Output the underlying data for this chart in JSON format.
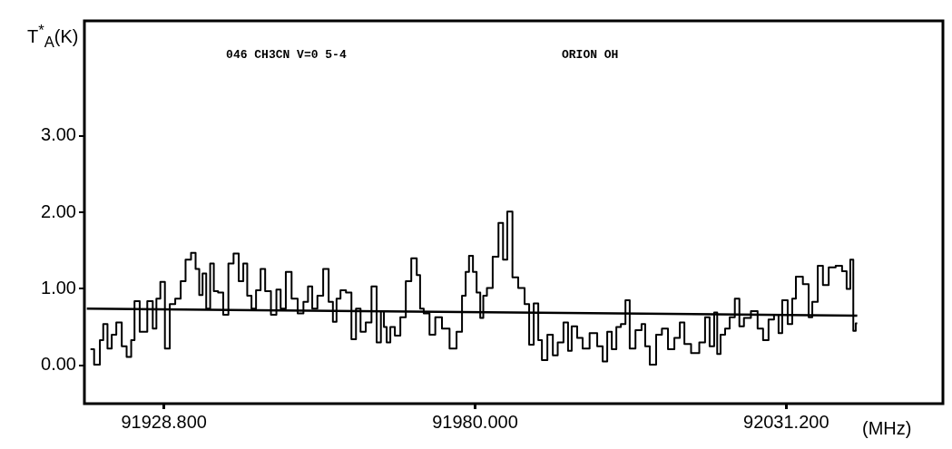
{
  "chart_data": {
    "type": "step",
    "xlabel": "(MHz)",
    "ylabel": "T$^{*}$$_{A}$(K)",
    "annotations": [
      "046 CH3CN V=0 5-4",
      "ORION OH"
    ],
    "xlim": [
      91915.7,
      92057.0
    ],
    "ylim": [
      -0.5,
      4.5
    ],
    "xticks": [
      {
        "value": 91928.8,
        "label": "91928.800"
      },
      {
        "value": 91980.0,
        "label": "91980.000"
      },
      {
        "value": 92031.2,
        "label": "92031.200"
      }
    ],
    "yticks": [
      {
        "value": 0,
        "label": "0.00"
      },
      {
        "value": 1,
        "label": "1.00"
      },
      {
        "value": 2,
        "label": "2.00"
      },
      {
        "value": 3,
        "label": "3.00"
      }
    ],
    "legend": false,
    "series": [
      {
        "color": "#000000",
        "x": [
          91916.7,
          91917.9,
          91918.6,
          91919.0,
          91920.0,
          91920.4,
          91921.5,
          91922.2,
          91923.1,
          91923.7,
          91924.2,
          91925.4,
          91926.7,
          91927.2,
          91927.9,
          91928.5,
          91929.4,
          91930.1,
          91931.2,
          91931.9,
          91932.8,
          91933.7,
          91934.3,
          91934.9,
          91935.4,
          91936.1,
          91936.7,
          91937.3,
          91938.1,
          91939.0,
          91939.8,
          91940.7,
          91941.5,
          91942.2,
          91942.8,
          91943.6,
          91944.3,
          91945.1,
          91945.8,
          91947.0,
          91947.6,
          91948.4,
          91949.3,
          91950.3,
          91951.3,
          91952.2,
          91952.8,
          91953.6,
          91954.5,
          91955.5,
          91956.3,
          91956.9,
          91957.5,
          91958.2,
          91959.3,
          91960.0,
          91960.8,
          91961.5,
          91962.5,
          91963.4,
          91964.2,
          91964.8,
          91965.2,
          91965.7,
          91966.4,
          91967.2,
          91968.2,
          91969.0,
          91970.0,
          91970.8,
          91971.1,
          91972.0,
          91973.0,
          91973.9,
          91975.2,
          91976.4,
          91977.5,
          91978.2,
          91978.7,
          91979.3,
          91980.0,
          91980.5,
          91981.2,
          91981.5,
          91982.4,
          91983.4,
          91984.3,
          91984.9,
          91985.7,
          91986.6,
          91987.6,
          91988.7,
          91989.1,
          91990.2,
          91990.6,
          91991.4,
          91992.4,
          91993.2,
          91994.0,
          91995.1,
          91995.5,
          91996.3,
          91997.3,
          91998.1,
          91999.6,
          92000.6,
          92001.4,
          92002.1,
          92002.9,
          92003.6,
          92004.4,
          92005.1,
          92005.8,
          92007.0,
          92007.8,
          92008.2,
          92009.3,
          92010.3,
          92011.2,
          92012.3,
          92013.3,
          92014.1,
          92014.8,
          92016.3,
          92017.5,
          92018.2,
          92019.0,
          92019.7,
          92020.0,
          92020.8,
          92021.5,
          92022.3,
          92023.2,
          92023.8,
          92024.7,
          92026.1,
          92026.9,
          92027.9,
          92028.7,
          92029.7,
          92030.2,
          92030.9,
          92032.0,
          92032.4,
          92033.2,
          92034.7,
          92035.1,
          92035.9,
          92036.9,
          92037.6,
          92038.8,
          92039.9,
          92040.9,
          92041.4,
          92042.1,
          92042.4,
          92042.9
        ],
        "values": [
          0.21,
          0.01,
          0.33,
          0.54,
          0.22,
          0.4,
          0.56,
          0.25,
          0.11,
          0.33,
          0.84,
          0.44,
          0.84,
          0.48,
          0.87,
          1.09,
          0.22,
          0.8,
          0.87,
          1.1,
          1.38,
          1.47,
          1.26,
          0.92,
          1.2,
          0.74,
          1.33,
          0.97,
          0.95,
          0.66,
          1.33,
          1.46,
          1.1,
          1.33,
          0.91,
          0.74,
          0.98,
          1.26,
          0.97,
          0.66,
          0.99,
          0.74,
          1.22,
          0.87,
          0.68,
          0.83,
          1.03,
          0.74,
          0.91,
          1.26,
          0.83,
          0.57,
          0.87,
          0.98,
          0.95,
          0.34,
          0.74,
          0.44,
          0.56,
          1.03,
          0.3,
          0.71,
          0.5,
          0.3,
          0.5,
          0.39,
          0.63,
          1.1,
          1.4,
          1.18,
          0.74,
          0.68,
          0.4,
          0.63,
          0.48,
          0.22,
          0.44,
          0.91,
          1.22,
          1.43,
          1.22,
          0.95,
          0.62,
          0.91,
          1.01,
          1.42,
          1.86,
          1.38,
          2.01,
          1.15,
          1.01,
          0.8,
          0.27,
          0.81,
          0.33,
          0.07,
          0.4,
          0.13,
          0.3,
          0.56,
          0.19,
          0.51,
          0.36,
          0.22,
          0.42,
          0.25,
          0.05,
          0.44,
          0.21,
          0.5,
          0.54,
          0.85,
          0.22,
          0.46,
          0.54,
          0.25,
          0.01,
          0.4,
          0.48,
          0.21,
          0.36,
          0.56,
          0.28,
          0.16,
          0.3,
          0.63,
          0.25,
          0.69,
          0.15,
          0.4,
          0.48,
          0.63,
          0.87,
          0.51,
          0.62,
          0.71,
          0.48,
          0.33,
          0.6,
          0.66,
          0.42,
          0.85,
          0.54,
          0.87,
          1.16,
          1.06,
          0.63,
          0.83,
          1.3,
          1.05,
          1.28,
          1.3,
          1.23,
          1.0,
          1.38,
          0.45,
          0.55
        ]
      },
      {
        "type": "line",
        "color": "#000000",
        "x": [
          91916.1,
          92042.9
        ],
        "values": [
          0.74,
          0.65
        ]
      }
    ]
  }
}
